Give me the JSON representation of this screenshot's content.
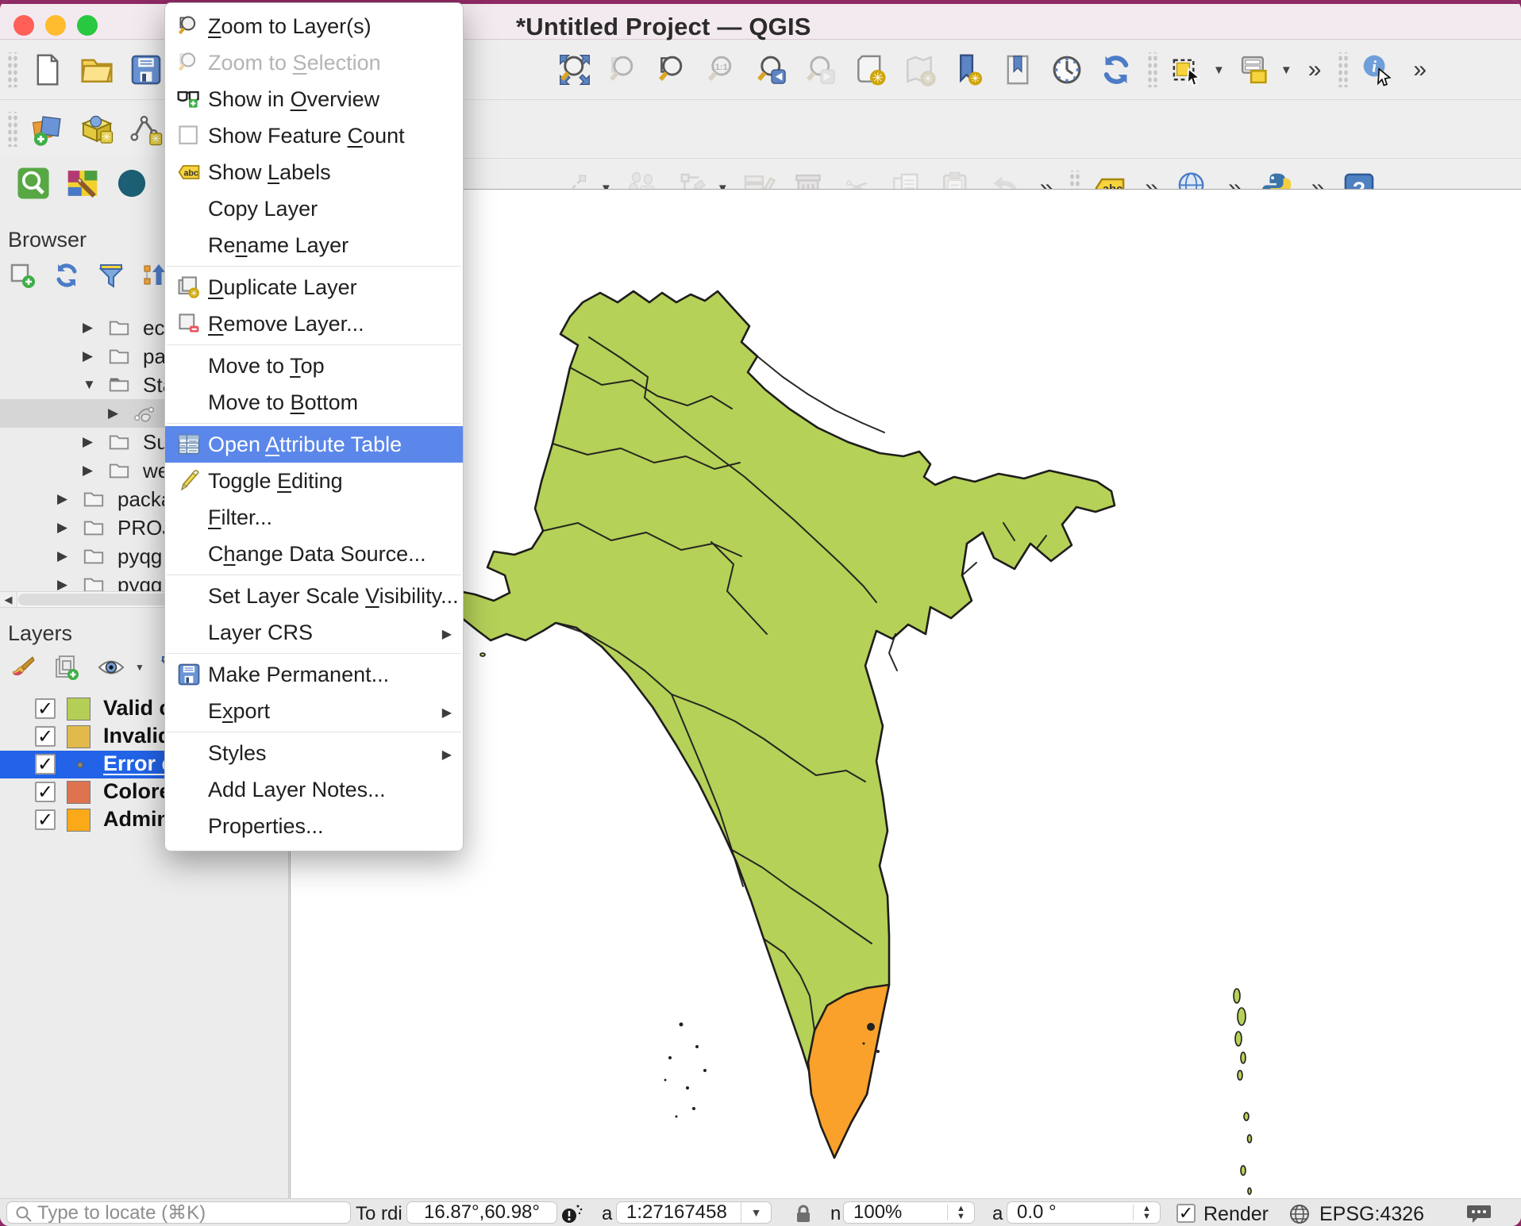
{
  "window": {
    "title": "*Untitled Project — QGIS"
  },
  "context_menu": {
    "items": [
      {
        "label": "Zoom to Layer(s)",
        "mnemonic": 0,
        "icon": "zoom-layer-icon"
      },
      {
        "label": "Zoom to Selection",
        "mnemonic": 8,
        "icon": "zoom-selection-icon",
        "disabled": true
      },
      {
        "label": "Show in Overview",
        "mnemonic": 8,
        "icon": "overview-glasses-icon"
      },
      {
        "label": "Show Feature Count",
        "mnemonic": 13,
        "icon": "checkbox-empty-icon"
      },
      {
        "label": "Show Labels",
        "mnemonic": 5,
        "icon": "abc-label-icon"
      },
      {
        "label": "Copy Layer"
      },
      {
        "label": "Rename Layer",
        "mnemonic": 2
      },
      {
        "type": "separator"
      },
      {
        "label": "Duplicate Layer",
        "mnemonic": 0,
        "icon": "duplicate-layer-icon"
      },
      {
        "label": "Remove Layer...",
        "mnemonic": 0,
        "icon": "remove-layer-icon"
      },
      {
        "type": "separator"
      },
      {
        "label": "Move to Top",
        "mnemonic": 8
      },
      {
        "label": "Move to Bottom",
        "mnemonic": 8
      },
      {
        "type": "separator"
      },
      {
        "label": "Open Attribute Table",
        "mnemonic": 5,
        "icon": "attribute-table-icon",
        "highlighted": true
      },
      {
        "label": "Toggle Editing",
        "mnemonic": 7,
        "icon": "pencil-icon"
      },
      {
        "label": "Filter...",
        "mnemonic": 0
      },
      {
        "label": "Change Data Source...",
        "mnemonic": 1
      },
      {
        "type": "separator"
      },
      {
        "label": "Set Layer Scale Visibility...",
        "mnemonic": 16
      },
      {
        "label": "Layer CRS",
        "submenu": true
      },
      {
        "type": "separator"
      },
      {
        "label": "Make Permanent...",
        "icon": "save-icon"
      },
      {
        "label": "Export",
        "mnemonic": 1,
        "submenu": true
      },
      {
        "type": "separator"
      },
      {
        "label": "Styles",
        "submenu": true
      },
      {
        "label": "Add Layer Notes..."
      },
      {
        "label": "Properties..."
      }
    ]
  },
  "toolbars": {
    "row1_left": [
      {
        "kind": "handle"
      },
      {
        "icon": "file-new-icon"
      },
      {
        "icon": "folder-open-icon"
      },
      {
        "icon": "save-icon"
      }
    ],
    "row1_right": [
      {
        "icon": "zoom-full-icon"
      },
      {
        "icon": "zoom-selection-icon",
        "disabled": true
      },
      {
        "icon": "zoom-layer-icon"
      },
      {
        "icon": "zoom-native-icon",
        "disabled": true
      },
      {
        "icon": "zoom-last-icon"
      },
      {
        "icon": "zoom-next-icon",
        "disabled": true
      },
      {
        "icon": "new-layout-icon"
      },
      {
        "icon": "layout-manager-icon",
        "disabled": true
      },
      {
        "icon": "new-bookmark-icon"
      },
      {
        "icon": "show-bookmarks-icon"
      },
      {
        "icon": "temporal-controller-icon"
      },
      {
        "icon": "refresh-icon"
      },
      {
        "kind": "handle"
      },
      {
        "icon": "select-rectangle-icon",
        "dropdown": true
      },
      {
        "icon": "select-form-icon",
        "dropdown": true
      },
      {
        "kind": "overflow"
      },
      {
        "kind": "handle"
      },
      {
        "icon": "identify-icon"
      },
      {
        "kind": "overflow"
      }
    ],
    "row2_left": [
      {
        "kind": "handle"
      },
      {
        "icon": "add-layers-icon"
      },
      {
        "icon": "geopackage-icon"
      },
      {
        "icon": "new-shapefile-icon"
      }
    ],
    "row2_right": [
      {
        "icon": "digitize-line-icon",
        "disabled": true,
        "dropdown": true
      },
      {
        "icon": "add-record-icon",
        "disabled": true
      },
      {
        "icon": "vertex-tool-icon",
        "disabled": true,
        "dropdown": true
      },
      {
        "icon": "edit-attributes-icon",
        "disabled": true
      },
      {
        "icon": "trash-icon",
        "disabled": true
      },
      {
        "icon": "cut-icon",
        "disabled": true
      },
      {
        "icon": "copy-icon",
        "disabled": true
      },
      {
        "icon": "paste-icon",
        "disabled": true
      },
      {
        "icon": "undo-icon",
        "disabled": true
      },
      {
        "kind": "overflow"
      },
      {
        "kind": "handle"
      },
      {
        "icon": "abc-label-icon"
      },
      {
        "kind": "overflow"
      },
      {
        "icon": "metasearch-globe-icon"
      },
      {
        "kind": "overflow"
      },
      {
        "icon": "python-icon"
      },
      {
        "kind": "overflow"
      },
      {
        "icon": "help-icon"
      }
    ],
    "row3_left": [
      {
        "icon": "search-plugin-icon"
      },
      {
        "icon": "maptips-icon"
      },
      {
        "icon": "teal-circle-icon"
      }
    ],
    "browser": [
      {
        "icon": "browser-add-icon"
      },
      {
        "icon": "refresh-icon"
      },
      {
        "icon": "funnel-icon"
      },
      {
        "icon": "collapse-tree-icon"
      }
    ],
    "layers": [
      {
        "icon": "style-brush-icon"
      },
      {
        "icon": "add-group-icon"
      },
      {
        "icon": "themes-eye-icon",
        "dropdown": true
      },
      {
        "icon": "funnel-icon",
        "dropdown": true
      }
    ]
  },
  "browser_panel": {
    "title": "Browser",
    "tree": [
      {
        "label": "ec",
        "indent": 2,
        "type": "folder"
      },
      {
        "label": "pa",
        "indent": 2,
        "type": "folder"
      },
      {
        "label": "Sta",
        "indent": 2,
        "type": "folder-open",
        "expanded": true
      },
      {
        "label": "",
        "indent": 3,
        "type": "geometry",
        "selected": true
      },
      {
        "label": "Su",
        "indent": 2,
        "type": "folder"
      },
      {
        "label": "we",
        "indent": 2,
        "type": "folder"
      },
      {
        "label": "packa",
        "indent": 1,
        "type": "folder"
      },
      {
        "label": "PROJ",
        "indent": 1,
        "type": "folder"
      },
      {
        "label": "pyqg",
        "indent": 1,
        "type": "folder"
      },
      {
        "label": "pyqg",
        "indent": 1,
        "type": "folder"
      }
    ]
  },
  "layers_panel": {
    "title": "Layers",
    "layers": [
      {
        "label": "Valid c",
        "checked": true,
        "swatch": "#b5ce55"
      },
      {
        "label": "Invalid",
        "checked": true,
        "swatch": "#e1ba4b"
      },
      {
        "label": "Error c",
        "checked": true,
        "point": true,
        "selected": true
      },
      {
        "label": "Colore",
        "checked": true,
        "swatch": "#df7350"
      },
      {
        "label": "Admin",
        "checked": true,
        "swatch": "#fba919"
      }
    ]
  },
  "status_bar": {
    "locator_placeholder": "Type to locate (⌘K)",
    "coordinate_label_fragment_1": "To",
    "coordinate_label_fragment_2": "rdi",
    "coordinate": "16.87°,60.98°",
    "scale_label_fragment": "a",
    "scale": "1:27167458",
    "magnifier_label_fragment": "n",
    "magnifier": "100%",
    "rotation_label_fragment": "a",
    "rotation": "0.0 °",
    "render_label": "Render",
    "crs": "EPSG:4326"
  },
  "map": {
    "colors": {
      "valid_green": "#b5d158",
      "highlight_orange": "#f9a12b",
      "border": "#1f1d1b"
    }
  }
}
